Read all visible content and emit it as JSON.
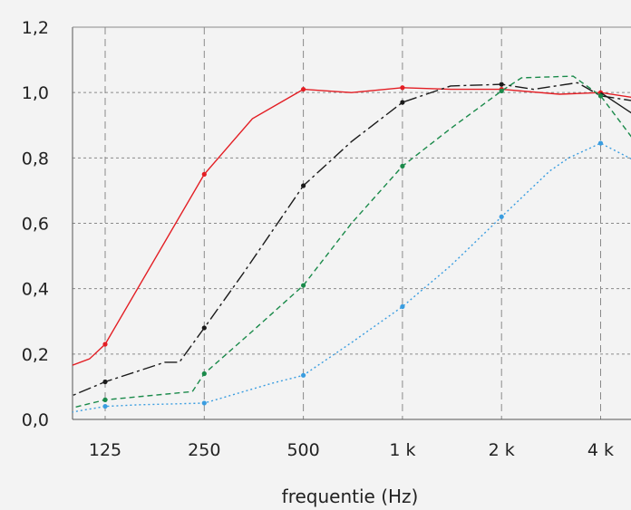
{
  "chart_data": {
    "type": "line",
    "title": "",
    "xlabel": "frequentie (Hz)",
    "ylabel": "",
    "x_scale": "log",
    "categories": [
      "125",
      "250",
      "500",
      "1 k",
      "2 k",
      "4 k"
    ],
    "x_values": [
      125,
      250,
      500,
      1000,
      2000,
      4000
    ],
    "ylim": [
      0,
      1.2
    ],
    "y_ticks": [
      "0,0",
      "0,2",
      "0,4",
      "0,6",
      "0,8",
      "1,0",
      "1,2"
    ],
    "grid": true,
    "series": [
      {
        "color": "#e31e24",
        "dash": "solid",
        "line": [
          [
            90,
            0.15
          ],
          [
            112,
            0.185
          ],
          [
            125,
            0.23
          ],
          [
            250,
            0.75
          ],
          [
            350,
            0.92
          ],
          [
            500,
            1.01
          ],
          [
            700,
            1.0
          ],
          [
            1000,
            1.015
          ],
          [
            1400,
            1.01
          ],
          [
            2000,
            1.01
          ],
          [
            3000,
            0.995
          ],
          [
            4000,
            1.0
          ],
          [
            5000,
            0.985
          ]
        ],
        "points": [
          [
            125,
            0.23
          ],
          [
            250,
            0.75
          ],
          [
            500,
            1.01
          ],
          [
            1000,
            1.015
          ],
          [
            2000,
            1.01
          ],
          [
            4000,
            1.0
          ]
        ]
      },
      {
        "color": "#1a1a1a",
        "dash": "longdash",
        "line": [
          [
            90,
            0.055
          ],
          [
            125,
            0.115
          ],
          [
            190,
            0.175
          ],
          [
            210,
            0.175
          ],
          [
            250,
            0.28
          ],
          [
            330,
            0.45
          ],
          [
            500,
            0.715
          ],
          [
            700,
            0.85
          ],
          [
            1000,
            0.97
          ],
          [
            1400,
            1.02
          ],
          [
            2000,
            1.025
          ],
          [
            2500,
            1.01
          ],
          [
            3400,
            1.03
          ],
          [
            4000,
            0.99
          ],
          [
            5000,
            0.975
          ]
        ],
        "points": [
          [
            125,
            0.115
          ],
          [
            250,
            0.28
          ],
          [
            500,
            0.715
          ],
          [
            1000,
            0.97
          ],
          [
            2000,
            1.025
          ],
          [
            4000,
            0.99
          ]
        ]
      },
      {
        "color": "#1a8a4a",
        "dash": "dash",
        "line": [
          [
            90,
            0.025
          ],
          [
            125,
            0.06
          ],
          [
            230,
            0.085
          ],
          [
            250,
            0.14
          ],
          [
            350,
            0.27
          ],
          [
            500,
            0.41
          ],
          [
            700,
            0.6
          ],
          [
            1000,
            0.775
          ],
          [
            1400,
            0.89
          ],
          [
            2000,
            1.005
          ],
          [
            2300,
            1.045
          ],
          [
            3300,
            1.05
          ],
          [
            4000,
            0.99
          ],
          [
            5000,
            0.86
          ]
        ],
        "points": [
          [
            125,
            0.06
          ],
          [
            250,
            0.14
          ],
          [
            500,
            0.41
          ],
          [
            1000,
            0.775
          ],
          [
            2000,
            1.005
          ],
          [
            4000,
            0.99
          ]
        ]
      },
      {
        "color": "#3a9de0",
        "dash": "dot",
        "line": [
          [
            90,
            0.015
          ],
          [
            125,
            0.04
          ],
          [
            160,
            0.045
          ],
          [
            250,
            0.05
          ],
          [
            400,
            0.11
          ],
          [
            500,
            0.135
          ],
          [
            700,
            0.235
          ],
          [
            1000,
            0.345
          ],
          [
            1400,
            0.47
          ],
          [
            2000,
            0.62
          ],
          [
            2800,
            0.76
          ],
          [
            3200,
            0.8
          ],
          [
            4000,
            0.845
          ],
          [
            5000,
            0.795
          ]
        ],
        "points": [
          [
            125,
            0.04
          ],
          [
            250,
            0.05
          ],
          [
            500,
            0.135
          ],
          [
            1000,
            0.345
          ],
          [
            2000,
            0.62
          ],
          [
            4000,
            0.845
          ]
        ]
      },
      {
        "color": "#1a1a1a",
        "dash": "solid",
        "line": [
          [
            4000,
            1.0
          ],
          [
            5000,
            0.935
          ]
        ],
        "points": []
      }
    ]
  }
}
